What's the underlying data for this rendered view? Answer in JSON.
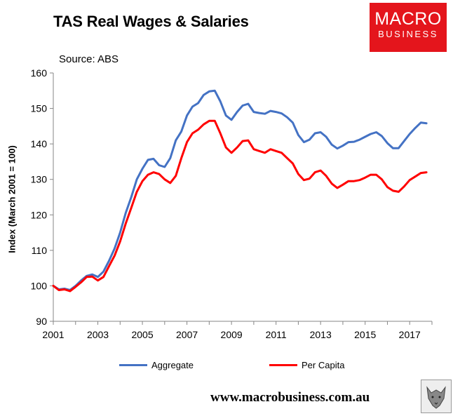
{
  "header": {
    "title": "TAS Real Wages & Salaries",
    "source": "Source: ABS"
  },
  "logo": {
    "line1": "MACRO",
    "line2": "BUSINESS",
    "bg_color": "#e4151c"
  },
  "footer": {
    "website": "www.macrobusiness.com.au",
    "mascot_icon": "wolf-icon"
  },
  "chart_data": {
    "type": "line",
    "title": "TAS Real Wages & Salaries",
    "ylabel": "Index (March 2001 = 100)",
    "xlabel": "",
    "ylim": [
      90,
      160
    ],
    "xlim": [
      2001,
      2018
    ],
    "yticks": [
      90,
      100,
      110,
      120,
      130,
      140,
      150,
      160
    ],
    "xticks": [
      "2001",
      "2003",
      "2005",
      "2007",
      "2009",
      "2011",
      "2013",
      "2015",
      "2017"
    ],
    "grid": false,
    "legend": "bottom",
    "x": [
      2001.0,
      2001.25,
      2001.5,
      2001.75,
      2002.0,
      2002.25,
      2002.5,
      2002.75,
      2003.0,
      2003.25,
      2003.5,
      2003.75,
      2004.0,
      2004.25,
      2004.5,
      2004.75,
      2005.0,
      2005.25,
      2005.5,
      2005.75,
      2006.0,
      2006.25,
      2006.5,
      2006.75,
      2007.0,
      2007.25,
      2007.5,
      2007.75,
      2008.0,
      2008.25,
      2008.5,
      2008.75,
      2009.0,
      2009.25,
      2009.5,
      2009.75,
      2010.0,
      2010.25,
      2010.5,
      2010.75,
      2011.0,
      2011.25,
      2011.5,
      2011.75,
      2012.0,
      2012.25,
      2012.5,
      2012.75,
      2013.0,
      2013.25,
      2013.5,
      2013.75,
      2014.0,
      2014.25,
      2014.5,
      2014.75,
      2015.0,
      2015.25,
      2015.5,
      2015.75,
      2016.0,
      2016.25,
      2016.5,
      2016.75,
      2017.0,
      2017.25,
      2017.5,
      2017.75
    ],
    "series": [
      {
        "name": "Aggregate",
        "color": "#4472c4",
        "values": [
          100.0,
          99.0,
          99.2,
          98.8,
          100.0,
          101.5,
          102.8,
          103.2,
          102.5,
          104.0,
          107.0,
          110.5,
          115.0,
          120.5,
          125.0,
          130.0,
          133.0,
          135.5,
          135.8,
          134.0,
          133.5,
          136.0,
          141.0,
          143.5,
          148.0,
          150.5,
          151.5,
          153.8,
          154.8,
          155.0,
          152.0,
          148.0,
          146.8,
          149.0,
          150.8,
          151.3,
          149.0,
          148.7,
          148.5,
          149.3,
          149.0,
          148.6,
          147.5,
          146.0,
          142.5,
          140.5,
          141.2,
          143.0,
          143.3,
          142.0,
          139.8,
          138.7,
          139.5,
          140.5,
          140.6,
          141.2,
          142.0,
          142.8,
          143.3,
          142.2,
          140.2,
          138.8,
          138.8,
          140.8,
          142.8,
          144.5,
          146.0,
          145.8
        ],
        "area_note": ""
      },
      {
        "name": "Per Capita",
        "color": "#ff0000",
        "values": [
          100.0,
          98.8,
          99.0,
          98.5,
          99.7,
          101.0,
          102.5,
          102.6,
          101.5,
          102.5,
          105.5,
          108.5,
          112.5,
          117.5,
          122.0,
          126.5,
          129.5,
          131.3,
          132.0,
          131.5,
          130.0,
          129.0,
          131.0,
          136.0,
          140.5,
          143.0,
          144.0,
          145.5,
          146.5,
          146.5,
          143.0,
          139.0,
          137.5,
          139.0,
          140.8,
          141.0,
          138.5,
          138.0,
          137.5,
          138.5,
          138.0,
          137.5,
          136.0,
          134.5,
          131.5,
          129.8,
          130.2,
          132.0,
          132.5,
          131.0,
          128.8,
          127.6,
          128.5,
          129.5,
          129.5,
          129.8,
          130.5,
          131.3,
          131.3,
          130.0,
          127.8,
          126.8,
          126.5,
          128.0,
          129.8,
          130.8,
          131.8,
          132.0
        ]
      }
    ]
  }
}
